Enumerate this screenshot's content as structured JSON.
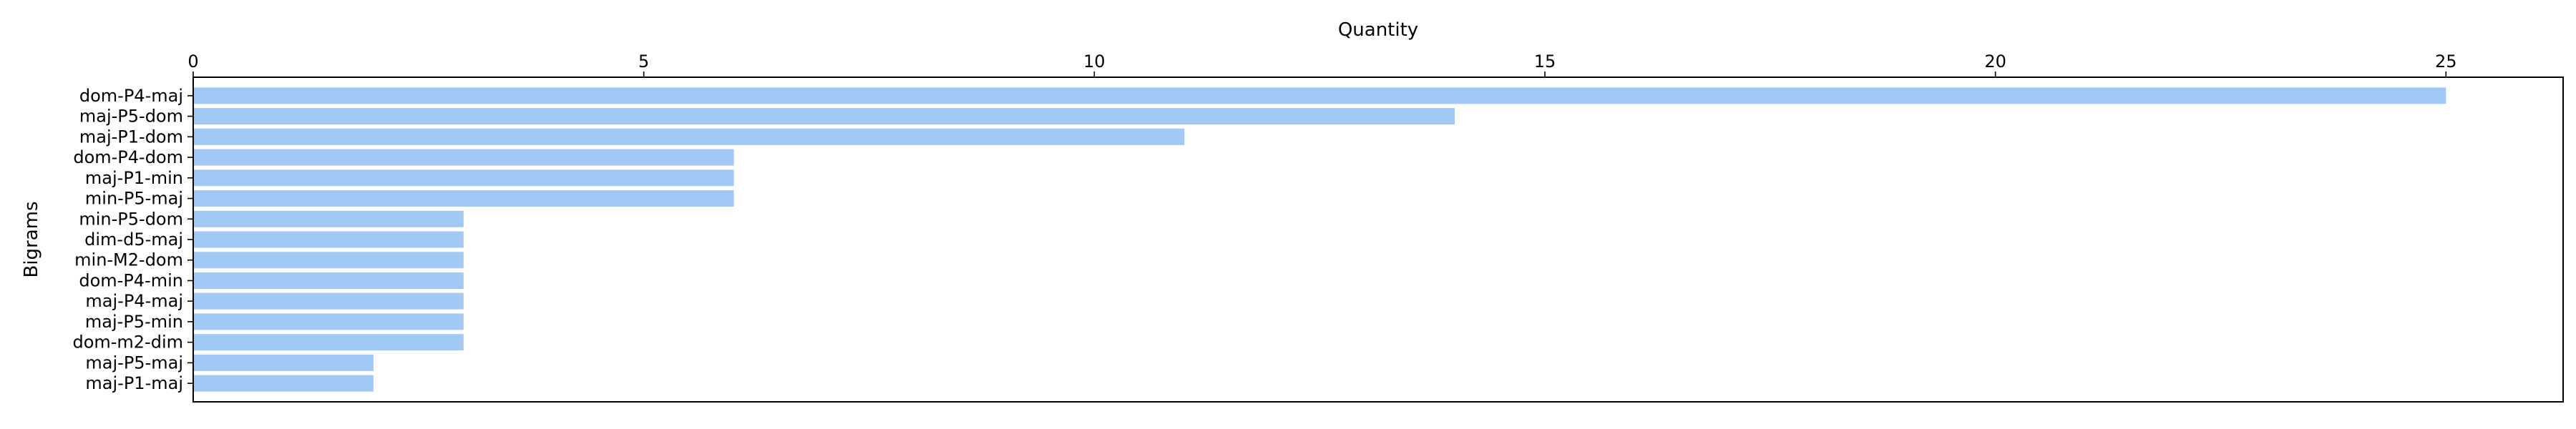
{
  "chart_data": {
    "type": "bar",
    "orientation": "horizontal",
    "xlabel": "Quantity",
    "ylabel": "Bigrams",
    "x_axis_position": "top",
    "xlim": [
      0,
      26.3
    ],
    "xticks": [
      0,
      5,
      10,
      15,
      20,
      25
    ],
    "grid": false,
    "bar_color": "#a1c9f4",
    "categories": [
      "dom-P4-maj",
      "maj-P5-dom",
      "maj-P1-dom",
      "dom-P4-dom",
      "maj-P1-min",
      "min-P5-maj",
      "min-P5-dom",
      "dim-d5-maj",
      "min-M2-dom",
      "dom-P4-min",
      "maj-P4-maj",
      "maj-P5-min",
      "dom-m2-dim",
      "maj-P5-maj",
      "maj-P1-maj"
    ],
    "values": [
      25,
      14,
      11,
      6,
      6,
      6,
      3,
      3,
      3,
      3,
      3,
      3,
      3,
      2,
      2
    ]
  }
}
